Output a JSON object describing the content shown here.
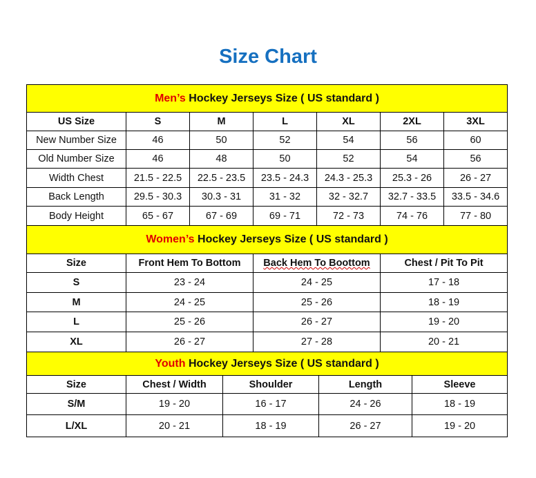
{
  "title": "Size Chart",
  "colors": {
    "title": "#1670c0",
    "section_bg": "#ffff00",
    "highlight": "#e00000"
  },
  "men": {
    "section_highlight": "Men’s",
    "section_rest": " Hockey Jerseys Size ( US standard )",
    "headers": [
      "US Size",
      "S",
      "M",
      "L",
      "XL",
      "2XL",
      "3XL"
    ],
    "rows": [
      [
        "New Number Size",
        "46",
        "50",
        "52",
        "54",
        "56",
        "60"
      ],
      [
        "Old Number Size",
        "46",
        "48",
        "50",
        "52",
        "54",
        "56"
      ],
      [
        "Width Chest",
        "21.5 - 22.5",
        "22.5 - 23.5",
        "23.5 - 24.3",
        "24.3 - 25.3",
        "25.3 - 26",
        "26 - 27"
      ],
      [
        "Back Length",
        "29.5 - 30.3",
        "30.3 - 31",
        "31 - 32",
        "32 - 32.7",
        "32.7 - 33.5",
        "33.5 - 34.6"
      ],
      [
        "Body Height",
        "65 - 67",
        "67 - 69",
        "69 - 71",
        "72 - 73",
        "74 - 76",
        "77 - 80"
      ]
    ]
  },
  "women": {
    "section_highlight": "Women’s",
    "section_rest": " Hockey Jerseys Size ( US standard )",
    "headers": [
      "Size",
      "Front Hem To Bottom",
      "Back Hem To Boottom",
      "Chest / Pit To Pit"
    ],
    "rows": [
      [
        "S",
        "23 - 24",
        "24 - 25",
        "17 - 18"
      ],
      [
        "M",
        "24 - 25",
        "25 - 26",
        "18 - 19"
      ],
      [
        "L",
        "25 - 26",
        "26 - 27",
        "19 - 20"
      ],
      [
        "XL",
        "26 - 27",
        "27 - 28",
        "20 - 21"
      ]
    ]
  },
  "youth": {
    "section_highlight": "Youth",
    "section_rest": " Hockey Jerseys Size ( US standard )",
    "headers": [
      "Size",
      "Chest / Width",
      "Shoulder",
      "Length",
      "Sleeve"
    ],
    "rows": [
      [
        "S/M",
        "19 - 20",
        "16 - 17",
        "24 - 26",
        "18 - 19"
      ],
      [
        "L/XL",
        "20 - 21",
        "18 - 19",
        "26 - 27",
        "19 - 20"
      ]
    ]
  }
}
